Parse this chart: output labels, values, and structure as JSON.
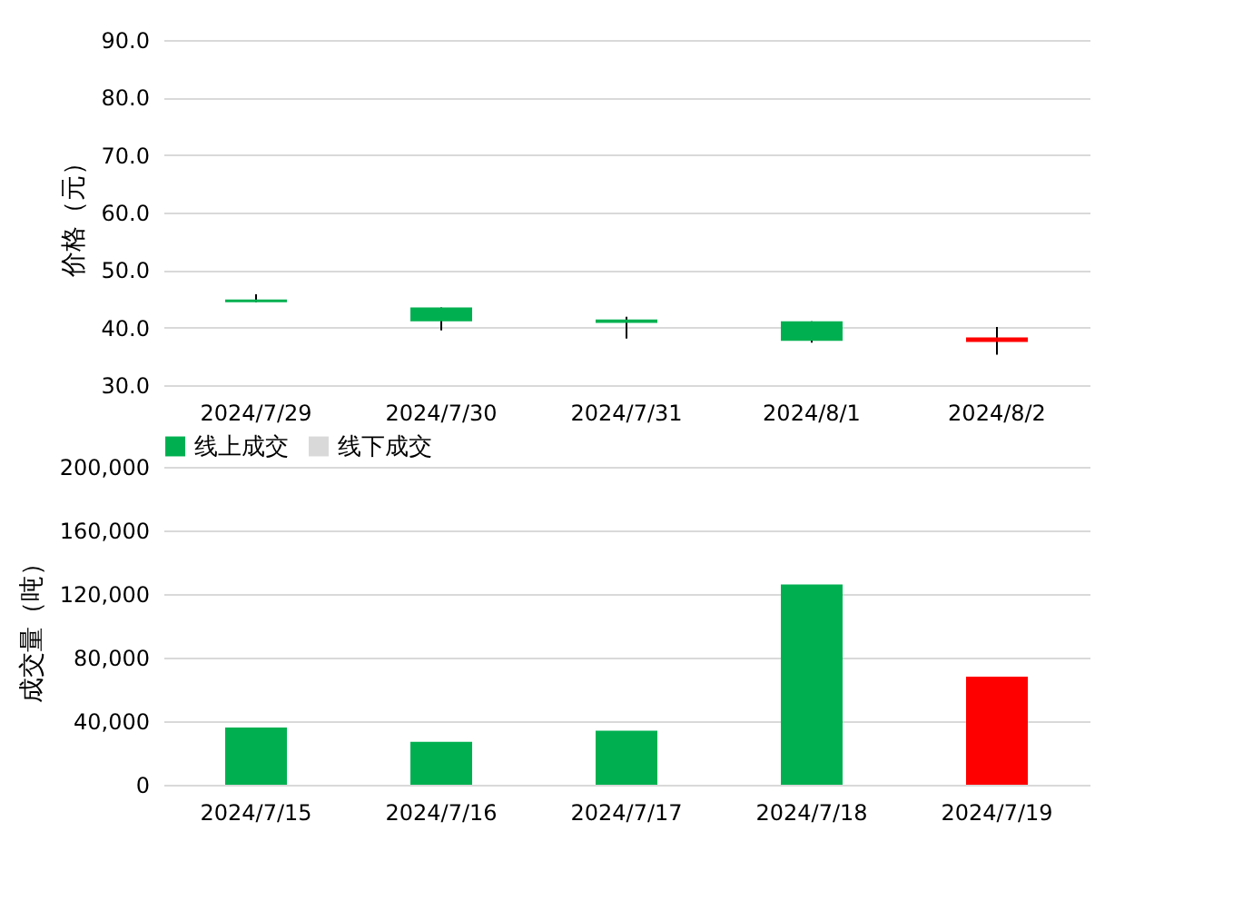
{
  "chart_data": [
    {
      "type": "candlestick",
      "ylabel": "价格（元）",
      "categories": [
        "2024/7/29",
        "2024/7/30",
        "2024/7/31",
        "2024/8/1",
        "2024/8/2"
      ],
      "ohlc": [
        [
          44.9,
          45.8,
          44.4,
          44.4
        ],
        [
          43.5,
          43.5,
          39.5,
          41.1
        ],
        [
          41.4,
          41.9,
          38.1,
          40.8
        ],
        [
          41.1,
          41.1,
          37.4,
          37.7
        ],
        [
          37.5,
          40.1,
          35.3,
          38.3
        ]
      ],
      "colors": [
        "#00b050",
        "#00b050",
        "#00b050",
        "#00b050",
        "#ff0000"
      ],
      "ylim": [
        30,
        90
      ],
      "yticks": [
        {
          "value": 30,
          "label": "30.0"
        },
        {
          "value": 40,
          "label": "40.0"
        },
        {
          "value": 50,
          "label": "50.0"
        },
        {
          "value": 60,
          "label": "60.0"
        },
        {
          "value": 70,
          "label": "70.0"
        },
        {
          "value": 80,
          "label": "80.0"
        },
        {
          "value": 90,
          "label": "90.0"
        }
      ],
      "grid": "y"
    },
    {
      "type": "bar",
      "ylabel": "成交量（吨）",
      "categories": [
        "2024/7/15",
        "2024/7/16",
        "2024/7/17",
        "2024/7/18",
        "2024/7/19"
      ],
      "series": [
        {
          "name": "线上成交",
          "color": "#00b050",
          "colors": [
            "#00b050",
            "#00b050",
            "#00b050",
            "#00b050",
            "#ff0000"
          ],
          "values": [
            36000,
            27000,
            34000,
            126000,
            68000
          ]
        },
        {
          "name": "线下成交",
          "color": "#d9d9d9",
          "values": [
            null,
            null,
            null,
            null,
            null
          ]
        }
      ],
      "ylim": [
        0,
        200000
      ],
      "yticks": [
        {
          "value": 0,
          "label": "0"
        },
        {
          "value": 40000,
          "label": "40,000"
        },
        {
          "value": 80000,
          "label": "80,000"
        },
        {
          "value": 120000,
          "label": "120,000"
        },
        {
          "value": 160000,
          "label": "160,000"
        },
        {
          "value": 200000,
          "label": "200,000"
        }
      ],
      "grid": "y",
      "legend": "top"
    }
  ]
}
